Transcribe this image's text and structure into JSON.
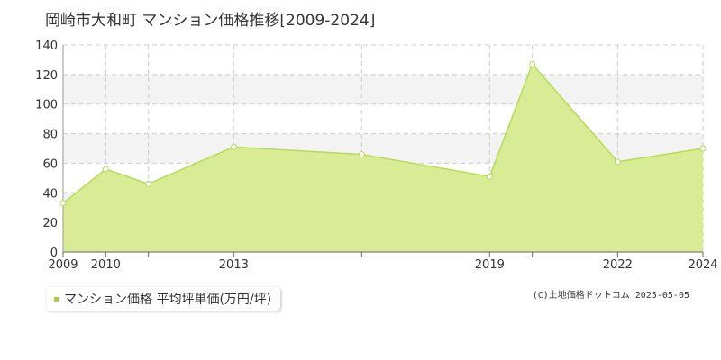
{
  "chart_data": {
    "type": "area",
    "title": "岡崎市大和町 マンション価格推移[2009-2024]",
    "x": [
      2009,
      2010,
      2011,
      2013,
      2016,
      2019,
      2020,
      2022,
      2024
    ],
    "x_tick_labels": [
      "2009",
      "2010",
      "2013",
      "2019",
      "2022",
      "2024"
    ],
    "x_ticks": [
      2009,
      2010,
      2013,
      2019,
      2022,
      2024
    ],
    "xlim": [
      2009,
      2024
    ],
    "ylim": [
      0,
      140
    ],
    "y_ticks": [
      0,
      20,
      40,
      60,
      80,
      100,
      120,
      140
    ],
    "series": [
      {
        "name": "マンション価格 平均坪単価(万円/坪)",
        "values": [
          33,
          56,
          46,
          71,
          66,
          51,
          127,
          61,
          70
        ]
      }
    ],
    "grid": true,
    "legend": "bottom-left",
    "colors": {
      "area_fill": "#d9ec95",
      "line": "#b5dc55",
      "marker_fill": "#ffffff",
      "legend_marker": "#a6cf3b",
      "grid": "#cccccc",
      "band": "#f3f3f3"
    }
  },
  "legend_label": "マンション価格 平均坪単価(万円/坪)",
  "copyright": "(C)土地価格ドットコム 2025-05-05"
}
